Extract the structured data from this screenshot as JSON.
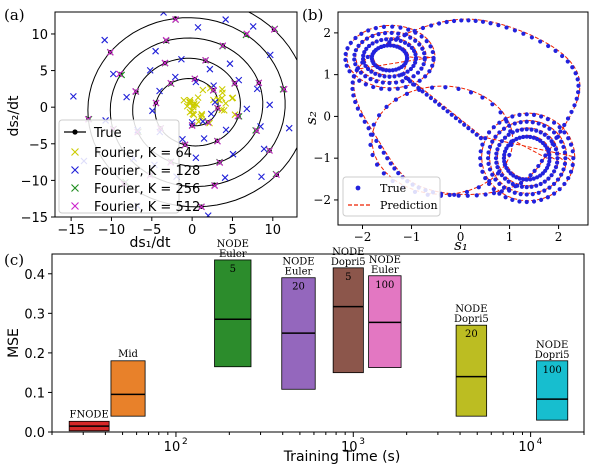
{
  "panels": [
    {
      "label": "(a)",
      "chart_data": {
        "type": "scatter",
        "xlabel": "ds₁/dt",
        "ylabel": "ds₂/dt",
        "xlim": [
          -17,
          13
        ],
        "ylim": [
          -15,
          13
        ],
        "xticks": [
          -15,
          -10,
          -5,
          0,
          5,
          10
        ],
        "yticks": [
          -15,
          -10,
          -5,
          0,
          5,
          10
        ],
        "xtick_labels": [
          "−15",
          "−10",
          "−5",
          "0",
          "5",
          "10"
        ],
        "ytick_labels": [
          "−15",
          "−10",
          "−5",
          "0",
          "5",
          "10"
        ],
        "legend_position": "lower-left",
        "spiral": {
          "r_start": 15,
          "r_end": 2.5,
          "turns": 4.5
        },
        "series": [
          {
            "name": "True",
            "marker": "line-dot",
            "color": "#000000",
            "points": 38
          },
          {
            "name": "Fourier, K = 64",
            "marker": "x",
            "color": "#cccc00",
            "cluster": [
              2,
              0
            ],
            "points": 34
          },
          {
            "name": "Fourier, K = 128",
            "marker": "x",
            "color": "#1f1fd8",
            "points": 48
          },
          {
            "name": "Fourier, K = 256",
            "marker": "x",
            "color": "#1e8c1e",
            "points": 38
          },
          {
            "name": "Fourier, K = 512",
            "marker": "x",
            "color": "#cc22cc",
            "points": 38
          }
        ]
      }
    },
    {
      "label": "(b)",
      "chart_data": {
        "type": "line",
        "xlabel": "s₁",
        "ylabel": "s₂",
        "xlim": [
          -2.5,
          2.6
        ],
        "ylim": [
          -2.6,
          2.5
        ],
        "xticks": [
          -2,
          -1,
          0,
          1,
          2
        ],
        "yticks": [
          -2,
          -1,
          0,
          1,
          2
        ],
        "xtick_labels": [
          "−2",
          "−1",
          "0",
          "1",
          "2"
        ],
        "ytick_labels": [
          "−2",
          "−1",
          "0",
          "1",
          "2"
        ],
        "legend_position": "lower-left",
        "series": [
          {
            "name": "True",
            "marker": "dot",
            "color": "#2222dd"
          },
          {
            "name": "Prediction",
            "marker": "dashed",
            "color": "#ee2200"
          }
        ]
      }
    },
    {
      "label": "(c)",
      "chart_data": {
        "type": "box",
        "xlabel": "Training Time (s)",
        "ylabel": "MSE",
        "xscale": "log",
        "xlim": [
          20,
          20000
        ],
        "ylim": [
          0,
          0.45
        ],
        "yticks": [
          0.0,
          0.1,
          0.2,
          0.3,
          0.4
        ],
        "ytick_labels": [
          "0.0",
          "0.1",
          "0.2",
          "0.3",
          "0.4"
        ],
        "xticks": [
          100,
          1000,
          10000
        ],
        "xtick_labels": [
          "10",
          "10",
          "10"
        ],
        "xtick_exponents": [
          "2",
          "3",
          "4"
        ],
        "boxes": [
          {
            "label": [
              "FNODE"
            ],
            "x_low": 25,
            "x_high": 42,
            "q1": 0.003,
            "median": 0.015,
            "q3": 0.027,
            "color": "#d62728"
          },
          {
            "label": [
              "Mid"
            ],
            "x_low": 43,
            "x_high": 67,
            "q1": 0.04,
            "median": 0.095,
            "q3": 0.18,
            "color": "#e8812a"
          },
          {
            "label": [
              "NODE",
              "Euler",
              "5"
            ],
            "x_low": 165,
            "x_high": 265,
            "q1": 0.165,
            "median": 0.285,
            "q3": 0.435,
            "color": "#2c8c2c"
          },
          {
            "label": [
              "NODE",
              "Euler",
              "20"
            ],
            "x_low": 395,
            "x_high": 610,
            "q1": 0.108,
            "median": 0.25,
            "q3": 0.39,
            "color": "#9467bd"
          },
          {
            "label": [
              "NODE",
              "Dopri5",
              "5"
            ],
            "x_low": 770,
            "x_high": 1140,
            "q1": 0.15,
            "median": 0.317,
            "q3": 0.415,
            "color": "#8c564b"
          },
          {
            "label": [
              "NODE",
              "Euler",
              "100"
            ],
            "x_low": 1220,
            "x_high": 1860,
            "q1": 0.163,
            "median": 0.277,
            "q3": 0.395,
            "color": "#e377c2"
          },
          {
            "label": [
              "NODE",
              "Dopri5",
              "20"
            ],
            "x_low": 3800,
            "x_high": 5650,
            "q1": 0.04,
            "median": 0.14,
            "q3": 0.27,
            "color": "#bcbd22"
          },
          {
            "label": [
              "NODE",
              "Dopri5",
              "100"
            ],
            "x_low": 10800,
            "x_high": 16200,
            "q1": 0.03,
            "median": 0.083,
            "q3": 0.18,
            "color": "#17becf"
          }
        ]
      }
    }
  ]
}
